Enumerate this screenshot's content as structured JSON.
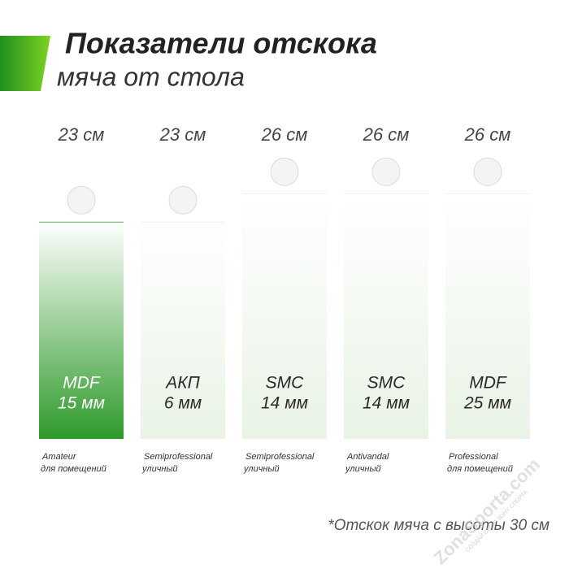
{
  "chart_data": {
    "type": "bar",
    "title": "Показатели отскока",
    "subtitle": "мяча от стола",
    "categories": [
      "MDF",
      "АКП",
      "SMC",
      "SMC",
      "MDF"
    ],
    "thickness": [
      "15 мм",
      "6 мм",
      "14 мм",
      "14 мм",
      "25 мм"
    ],
    "levels": [
      "Amateur",
      "Semiprofessional",
      "Semiprofessional",
      "Antivandal",
      "Professional"
    ],
    "usage": [
      "для помещений",
      "уличный",
      "уличный",
      "уличный",
      "для помещений"
    ],
    "values": [
      23,
      23,
      26,
      26,
      26
    ],
    "value_labels": [
      "23 см",
      "23 см",
      "26 см",
      "26 см",
      "26 см"
    ],
    "colors": [
      "#2e9a2a",
      "#e9f3e6",
      "#e9f3e6",
      "#e9f3e6",
      "#e9f3e6"
    ],
    "footnote": "*Отскок мяча с высоты 30 см",
    "watermark": "ZonaSporta.com",
    "watermark_tagline": "СОЗДАЙ СВОЮ ЗОНУ СПОРТА"
  }
}
